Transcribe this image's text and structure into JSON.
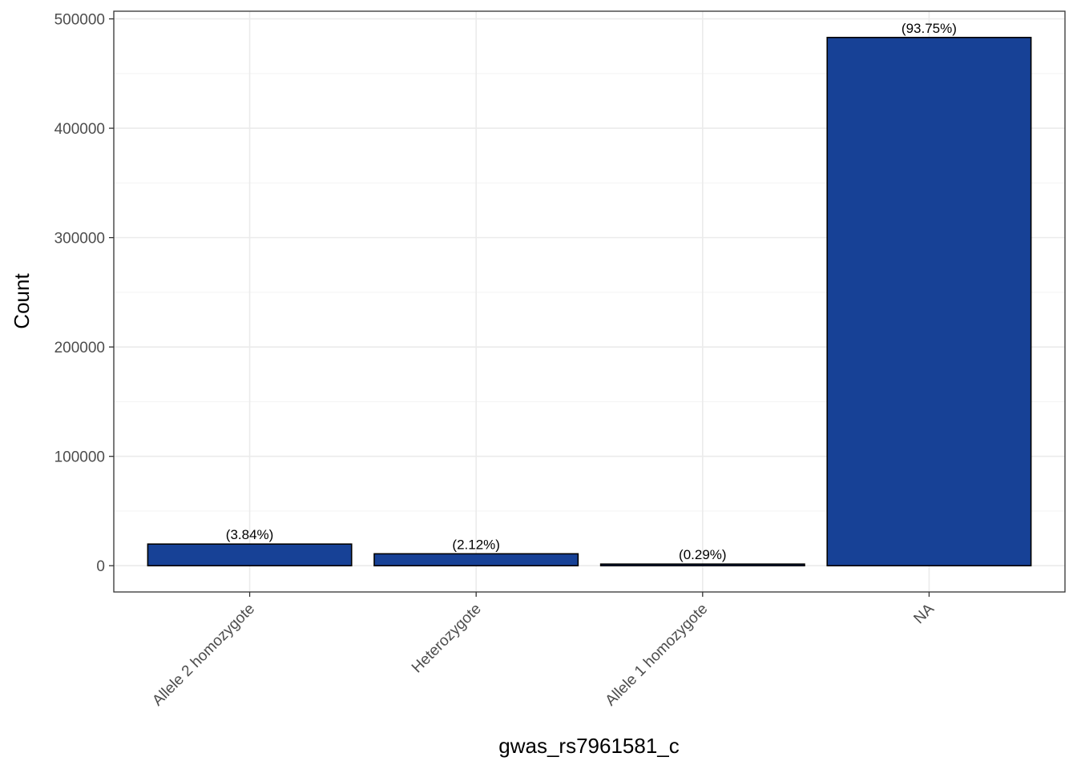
{
  "chart_data": {
    "type": "bar",
    "title": "",
    "xlabel": "gwas_rs7961581_c",
    "ylabel": "Count",
    "categories": [
      "Allele 2 homozygote",
      "Heterozygote",
      "Allele 1 homozygote",
      "NA"
    ],
    "values": [
      19800,
      10900,
      1500,
      483000
    ],
    "data_labels": [
      "(3.84%)",
      "(2.12%)",
      "(0.29%)",
      "(93.75%)"
    ],
    "ylim": [
      -24000,
      507000
    ],
    "yticks": [
      0,
      100000,
      200000,
      300000,
      400000,
      500000
    ],
    "ytick_labels": [
      "0",
      "100000",
      "200000",
      "300000",
      "400000",
      "500000"
    ],
    "grid": true,
    "legend": "none",
    "colors": {
      "bar_fill": "#174196",
      "bar_stroke": "#000000",
      "grid_major": "#ebebeb",
      "grid_minor": "#f3f3f3",
      "panel_border": "#333333",
      "tick_text": "#4d4d4d"
    }
  }
}
